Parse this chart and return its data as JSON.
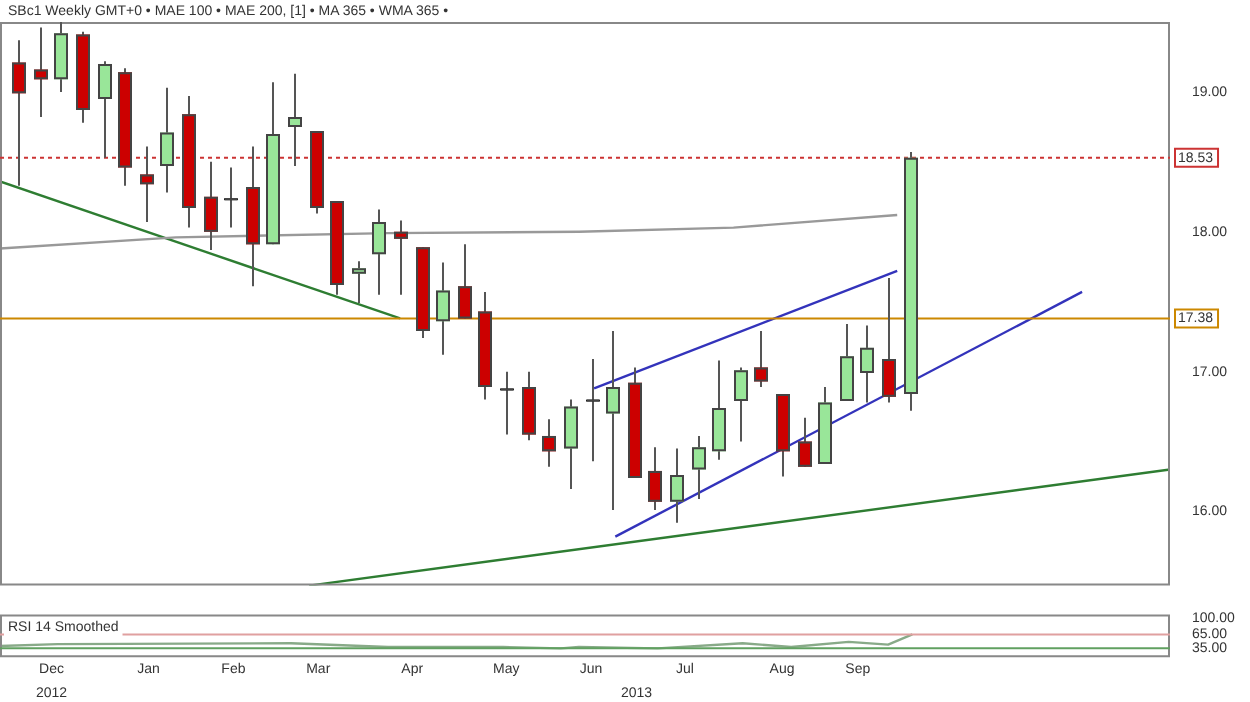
{
  "chart_data": [
    {
      "type": "candlestick",
      "title": "SBc1 Weekly GMT+0 • MAE 100 • MAE 200, [1] • MA 365 • WMA 365 •",
      "x": [
        "2012-12-03",
        "2012-12-10",
        "2012-12-17",
        "2012-12-24",
        "2012-12-31",
        "2013-01-07",
        "2013-01-14",
        "2013-01-21",
        "2013-01-28",
        "2013-02-04",
        "2013-02-11",
        "2013-02-18",
        "2013-02-25",
        "2013-03-04",
        "2013-03-11",
        "2013-03-18",
        "2013-03-25",
        "2013-04-01",
        "2013-04-08",
        "2013-04-15",
        "2013-04-22",
        "2013-04-29",
        "2013-05-06",
        "2013-05-13",
        "2013-05-20",
        "2013-05-27",
        "2013-06-03",
        "2013-06-10",
        "2013-06-17",
        "2013-06-24",
        "2013-07-01",
        "2013-07-08",
        "2013-07-15",
        "2013-07-22",
        "2013-07-29",
        "2013-08-05",
        "2013-08-12",
        "2013-08-19",
        "2013-08-26",
        "2013-09-02",
        "2013-09-09",
        "2013-09-16",
        "2013-09-23"
      ],
      "ohlc": [
        [
          19.21,
          19.37,
          18.33,
          18.99
        ],
        [
          19.16,
          19.46,
          18.82,
          19.09
        ],
        [
          19.09,
          19.5,
          19.0,
          19.42
        ],
        [
          19.41,
          19.43,
          18.78,
          18.87
        ],
        [
          18.95,
          19.22,
          18.53,
          19.2
        ],
        [
          19.14,
          19.17,
          18.33,
          18.46
        ],
        [
          18.41,
          18.61,
          18.07,
          18.34
        ],
        [
          18.47,
          19.03,
          18.28,
          18.71
        ],
        [
          18.84,
          18.97,
          18.03,
          18.17
        ],
        [
          18.25,
          18.5,
          17.87,
          18.0
        ],
        [
          18.24,
          18.46,
          18.03,
          18.24
        ],
        [
          18.32,
          18.61,
          17.61,
          17.91
        ],
        [
          17.91,
          19.07,
          17.91,
          18.7
        ],
        [
          18.75,
          19.13,
          18.47,
          18.82
        ],
        [
          18.72,
          18.72,
          18.13,
          18.17
        ],
        [
          18.22,
          18.22,
          17.55,
          17.62
        ],
        [
          17.7,
          17.79,
          17.49,
          17.74
        ],
        [
          17.84,
          18.16,
          17.55,
          18.07
        ],
        [
          18.0,
          18.08,
          17.55,
          17.95
        ],
        [
          17.89,
          17.89,
          17.24,
          17.29
        ],
        [
          17.36,
          17.78,
          17.12,
          17.58
        ],
        [
          17.61,
          17.91,
          17.38,
          17.38
        ],
        [
          17.43,
          17.57,
          16.8,
          16.89
        ],
        [
          16.88,
          17.0,
          16.55,
          16.88
        ],
        [
          16.89,
          17.0,
          16.51,
          16.55
        ],
        [
          16.54,
          16.66,
          16.32,
          16.43
        ],
        [
          16.45,
          16.8,
          16.16,
          16.75
        ],
        [
          16.8,
          17.09,
          16.36,
          16.8
        ],
        [
          16.7,
          17.29,
          16.01,
          16.89
        ],
        [
          16.92,
          17.03,
          16.24,
          16.24
        ],
        [
          16.29,
          16.46,
          16.01,
          16.07
        ],
        [
          16.07,
          16.45,
          15.92,
          16.26
        ],
        [
          16.3,
          16.54,
          16.09,
          16.46
        ],
        [
          16.43,
          17.08,
          16.37,
          16.74
        ],
        [
          16.79,
          17.03,
          16.5,
          17.01
        ],
        [
          17.03,
          17.29,
          16.89,
          16.93
        ],
        [
          16.84,
          16.84,
          16.25,
          16.43
        ],
        [
          16.5,
          16.67,
          16.32,
          16.32
        ],
        [
          16.34,
          16.89,
          16.34,
          16.78
        ],
        [
          16.79,
          17.34,
          16.79,
          17.11
        ],
        [
          16.99,
          17.33,
          16.78,
          17.17
        ],
        [
          17.09,
          17.67,
          16.78,
          16.82
        ],
        [
          16.84,
          18.57,
          16.72,
          18.53
        ]
      ],
      "colors": [
        "#cc0000",
        "#cc0000",
        "#99e699",
        "#cc0000",
        "#99e699",
        "#cc0000",
        "#cc0000",
        "#99e699",
        "#cc0000",
        "#cc0000",
        "#222222",
        "#cc0000",
        "#99e699",
        "#99e699",
        "#cc0000",
        "#cc0000",
        "#99e699",
        "#99e699",
        "#cc0000",
        "#cc0000",
        "#99e699",
        "#cc0000",
        "#cc0000",
        "#222222",
        "#cc0000",
        "#cc0000",
        "#99e699",
        "#222222",
        "#99e699",
        "#cc0000",
        "#cc0000",
        "#99e699",
        "#99e699",
        "#99e699",
        "#99e699",
        "#cc0000",
        "#cc0000",
        "#cc0000",
        "#99e699",
        "#99e699",
        "#99e699",
        "#cc0000",
        "#99e699"
      ],
      "series": [
        {
          "type": "line",
          "color": "#999999",
          "x": [
            "2012-11-27",
            "2013-01-24",
            "2013-04-04",
            "2013-06-06",
            "2013-07-27",
            "2013-09-19"
          ],
          "values": [
            17.88,
            17.96,
            17.99,
            18.0,
            18.03,
            18.12
          ]
        },
        {
          "type": "line",
          "color": "#2e7d32",
          "x": [
            "2012-11-27",
            "2013-04-08"
          ],
          "values": [
            18.36,
            17.38
          ]
        },
        {
          "type": "line",
          "color": "#3333bb",
          "x": [
            "2013-06-11",
            "2013-09-19"
          ],
          "values": [
            16.88,
            17.72
          ]
        },
        {
          "type": "line",
          "color": "#3333bb",
          "x": [
            "2013-06-18",
            "2013-11-19"
          ],
          "values": [
            15.82,
            17.57
          ]
        },
        {
          "type": "line",
          "color": "#2e7d32",
          "x": [
            "2013-03-09",
            "2013-12-18"
          ],
          "values": [
            15.47,
            16.3
          ]
        }
      ],
      "ref_lines": [
        {
          "axis": "y",
          "value": 18.53,
          "label": "18.53",
          "color": "#cc3333",
          "line_style": "dotted"
        },
        {
          "axis": "y",
          "value": 17.38,
          "label": "17.38",
          "color": "#cc8800",
          "line_style": "solid"
        }
      ],
      "xlim": [
        "2012-11-27",
        "2013-12-18"
      ],
      "ylim": [
        15.47,
        19.5
      ],
      "yticks": [
        {
          "value": 16,
          "label": "16.00"
        },
        {
          "value": 17,
          "label": "17.00"
        },
        {
          "value": 18,
          "label": "18.00"
        },
        {
          "value": 19,
          "label": "19.00"
        }
      ],
      "tick_labels": "y"
    },
    {
      "type": "line",
      "title": "RSI 14 Smoothed",
      "series": [
        {
          "color": "#88aa88",
          "x": [
            "2012-11-27",
            "2012-12-16",
            "2013-03-03",
            "2013-04-04",
            "2013-05-12",
            "2013-05-31",
            "2013-06-06",
            "2013-07-02",
            "2013-07-30",
            "2013-08-15",
            "2013-09-03",
            "2013-09-16",
            "2013-09-24"
          ],
          "values": [
            40,
            44,
            46,
            38,
            38,
            35,
            38,
            35,
            46,
            38,
            49,
            43,
            65
          ]
        }
      ],
      "ref_lines": [
        {
          "axis": "y",
          "value": 65,
          "color": "#e0a0a0"
        },
        {
          "axis": "y",
          "value": 35,
          "color": "#60a060"
        }
      ],
      "xlim": [
        "2012-11-27",
        "2013-12-18"
      ],
      "ylim": [
        16,
        108
      ],
      "yticks": [
        {
          "value": 100,
          "label": "100.00"
        },
        {
          "value": 65,
          "label": "65.00"
        },
        {
          "value": 35,
          "label": "35.00"
        }
      ],
      "xticks": [
        {
          "value": "2012-12-14",
          "label": "Dec"
        },
        {
          "value": "2013-01-15",
          "label": "Jan"
        },
        {
          "value": "2013-02-12",
          "label": "Feb"
        },
        {
          "value": "2013-03-12",
          "label": "Mar"
        },
        {
          "value": "2013-04-12",
          "label": "Apr"
        },
        {
          "value": "2013-05-13",
          "label": "May"
        },
        {
          "value": "2013-06-10",
          "label": "Jun"
        },
        {
          "value": "2013-07-11",
          "label": "Jul"
        },
        {
          "value": "2013-08-12",
          "label": "Aug"
        },
        {
          "value": "2013-09-06",
          "label": "Sep"
        }
      ],
      "annotations": [
        "2012",
        "2013"
      ]
    }
  ]
}
